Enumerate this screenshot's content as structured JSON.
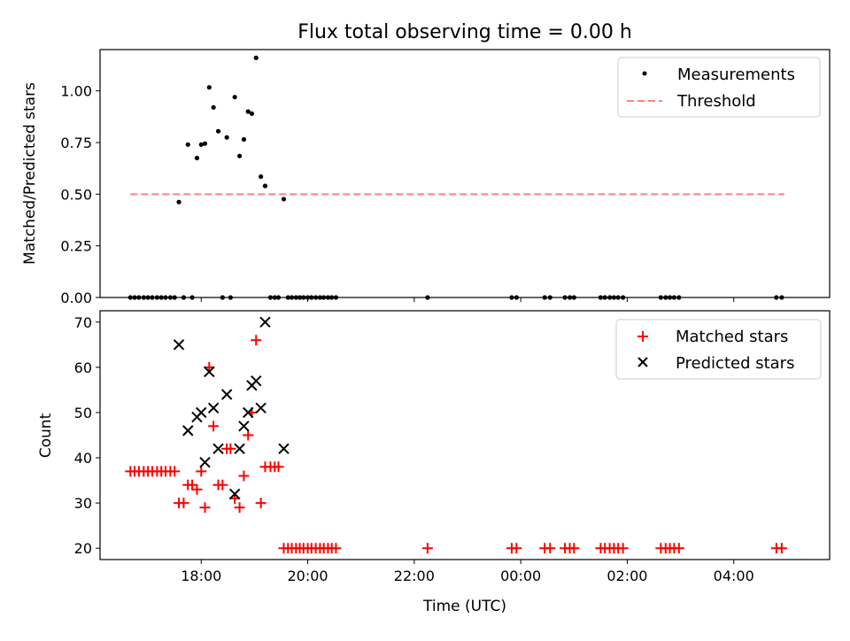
{
  "chart_data": [
    {
      "type": "scatter",
      "title": "Flux total observing time = 0.00 h",
      "xlabel": "",
      "ylabel": "Matched/Predicted stars",
      "xlim": [
        16.1,
        29.8
      ],
      "ylim": [
        0.0,
        1.2
      ],
      "yticks": [
        0.0,
        0.25,
        0.5,
        0.75,
        1.0
      ],
      "ytick_labels": [
        "0.00",
        "0.25",
        "0.50",
        "0.75",
        "1.00"
      ],
      "series": [
        {
          "name": "Measurements",
          "marker": "dot",
          "color": "#000000",
          "points": [
            [
              16.67,
              0
            ],
            [
              16.75,
              0
            ],
            [
              16.83,
              0
            ],
            [
              16.92,
              0
            ],
            [
              17.0,
              0
            ],
            [
              17.08,
              0
            ],
            [
              17.17,
              0
            ],
            [
              17.25,
              0
            ],
            [
              17.33,
              0
            ],
            [
              17.42,
              0
            ],
            [
              17.5,
              0
            ],
            [
              17.58,
              0.462
            ],
            [
              17.67,
              0
            ],
            [
              17.75,
              0.74
            ],
            [
              17.83,
              0
            ],
            [
              17.92,
              0.675
            ],
            [
              18.0,
              0.74
            ],
            [
              18.07,
              0.745
            ],
            [
              18.15,
              1.017
            ],
            [
              18.23,
              0.92
            ],
            [
              18.32,
              0.805
            ],
            [
              18.4,
              0
            ],
            [
              18.48,
              0.775
            ],
            [
              18.55,
              0
            ],
            [
              18.63,
              0.97
            ],
            [
              18.72,
              0.685
            ],
            [
              18.8,
              0.765
            ],
            [
              18.88,
              0.9
            ],
            [
              18.95,
              0.89
            ],
            [
              19.03,
              1.16
            ],
            [
              19.12,
              0.585
            ],
            [
              19.2,
              0.54
            ],
            [
              19.3,
              0
            ],
            [
              19.38,
              0
            ],
            [
              19.45,
              0
            ],
            [
              19.55,
              0.476
            ],
            [
              19.63,
              0
            ],
            [
              19.7,
              0
            ],
            [
              19.78,
              0
            ],
            [
              19.85,
              0
            ],
            [
              19.92,
              0
            ],
            [
              20.0,
              0
            ],
            [
              20.07,
              0
            ],
            [
              20.15,
              0
            ],
            [
              20.23,
              0
            ],
            [
              20.3,
              0
            ],
            [
              20.38,
              0
            ],
            [
              20.45,
              0
            ],
            [
              20.53,
              0
            ],
            [
              22.25,
              0
            ],
            [
              23.83,
              0
            ],
            [
              23.92,
              0
            ],
            [
              24.45,
              0
            ],
            [
              24.55,
              0
            ],
            [
              24.83,
              0
            ],
            [
              24.92,
              0
            ],
            [
              25.0,
              0
            ],
            [
              25.5,
              0
            ],
            [
              25.58,
              0
            ],
            [
              25.67,
              0
            ],
            [
              25.75,
              0
            ],
            [
              25.83,
              0
            ],
            [
              25.92,
              0
            ],
            [
              26.63,
              0
            ],
            [
              26.72,
              0
            ],
            [
              26.8,
              0
            ],
            [
              26.88,
              0
            ],
            [
              26.97,
              0
            ],
            [
              28.8,
              0
            ],
            [
              28.9,
              0
            ]
          ]
        },
        {
          "name": "Threshold",
          "marker": "dashed-line",
          "color": "#ff8080",
          "points": [
            [
              16.67,
              0.5
            ],
            [
              28.95,
              0.5
            ]
          ]
        }
      ],
      "legend": {
        "position": "top-right",
        "entries": [
          "Measurements",
          "Threshold"
        ]
      }
    },
    {
      "type": "scatter",
      "title": "",
      "xlabel": "Time (UTC)",
      "ylabel": "Count",
      "xlim": [
        16.1,
        29.8
      ],
      "ylim": [
        17.5,
        72.5
      ],
      "yticks": [
        20,
        30,
        40,
        50,
        60,
        70
      ],
      "ytick_labels": [
        "20",
        "30",
        "40",
        "50",
        "60",
        "70"
      ],
      "xticks": [
        18,
        20,
        22,
        24,
        26,
        28
      ],
      "xtick_labels": [
        "18:00",
        "20:00",
        "22:00",
        "00:00",
        "02:00",
        "04:00"
      ],
      "series": [
        {
          "name": "Matched stars",
          "marker": "plus",
          "color": "#ff0000",
          "points": [
            [
              16.67,
              37
            ],
            [
              16.75,
              37
            ],
            [
              16.83,
              37
            ],
            [
              16.92,
              37
            ],
            [
              17.0,
              37
            ],
            [
              17.08,
              37
            ],
            [
              17.17,
              37
            ],
            [
              17.25,
              37
            ],
            [
              17.33,
              37
            ],
            [
              17.42,
              37
            ],
            [
              17.5,
              37
            ],
            [
              17.58,
              30
            ],
            [
              17.67,
              30
            ],
            [
              17.75,
              34
            ],
            [
              17.83,
              34
            ],
            [
              17.92,
              33
            ],
            [
              18.0,
              37
            ],
            [
              18.07,
              29
            ],
            [
              18.15,
              60
            ],
            [
              18.23,
              47
            ],
            [
              18.32,
              34
            ],
            [
              18.4,
              34
            ],
            [
              18.48,
              42
            ],
            [
              18.55,
              42
            ],
            [
              18.63,
              31
            ],
            [
              18.72,
              29
            ],
            [
              18.8,
              36
            ],
            [
              18.88,
              45
            ],
            [
              18.95,
              50
            ],
            [
              19.03,
              66
            ],
            [
              19.12,
              30
            ],
            [
              19.2,
              38
            ],
            [
              19.3,
              38
            ],
            [
              19.38,
              38
            ],
            [
              19.45,
              38
            ],
            [
              19.55,
              20
            ],
            [
              19.63,
              20
            ],
            [
              19.7,
              20
            ],
            [
              19.78,
              20
            ],
            [
              19.85,
              20
            ],
            [
              19.92,
              20
            ],
            [
              20.0,
              20
            ],
            [
              20.07,
              20
            ],
            [
              20.15,
              20
            ],
            [
              20.23,
              20
            ],
            [
              20.3,
              20
            ],
            [
              20.38,
              20
            ],
            [
              20.45,
              20
            ],
            [
              20.53,
              20
            ],
            [
              22.25,
              20
            ],
            [
              23.83,
              20
            ],
            [
              23.92,
              20
            ],
            [
              24.45,
              20
            ],
            [
              24.55,
              20
            ],
            [
              24.83,
              20
            ],
            [
              24.92,
              20
            ],
            [
              25.0,
              20
            ],
            [
              25.5,
              20
            ],
            [
              25.58,
              20
            ],
            [
              25.67,
              20
            ],
            [
              25.75,
              20
            ],
            [
              25.83,
              20
            ],
            [
              25.92,
              20
            ],
            [
              26.63,
              20
            ],
            [
              26.72,
              20
            ],
            [
              26.8,
              20
            ],
            [
              26.88,
              20
            ],
            [
              26.97,
              20
            ],
            [
              28.8,
              20
            ],
            [
              28.9,
              20
            ]
          ]
        },
        {
          "name": "Predicted stars",
          "marker": "x",
          "color": "#000000",
          "points": [
            [
              17.58,
              65
            ],
            [
              17.75,
              46
            ],
            [
              17.92,
              49
            ],
            [
              18.0,
              50
            ],
            [
              18.07,
              39
            ],
            [
              18.15,
              59
            ],
            [
              18.23,
              51
            ],
            [
              18.32,
              42
            ],
            [
              18.48,
              54
            ],
            [
              18.63,
              32
            ],
            [
              18.72,
              42
            ],
            [
              18.8,
              47
            ],
            [
              18.88,
              50
            ],
            [
              18.95,
              56
            ],
            [
              19.03,
              57
            ],
            [
              19.12,
              51
            ],
            [
              19.2,
              70
            ],
            [
              19.55,
              42
            ]
          ]
        }
      ],
      "legend": {
        "position": "top-right",
        "entries": [
          "Matched stars",
          "Predicted stars"
        ]
      }
    }
  ]
}
